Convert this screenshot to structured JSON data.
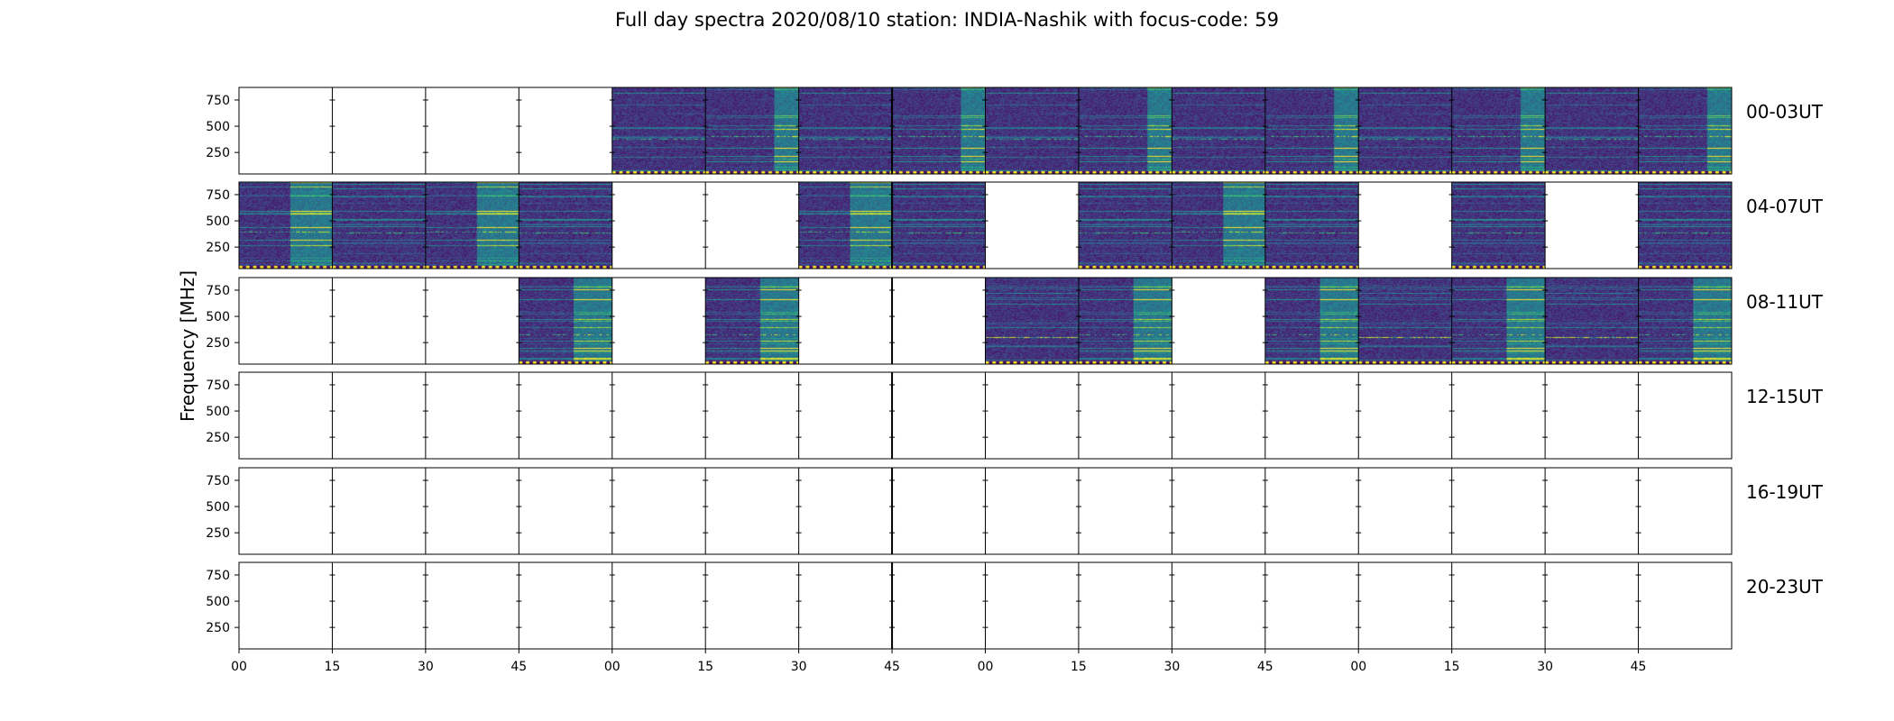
{
  "chart_data": {
    "type": "heatmap",
    "title": "Full day spectra 2020/08/10 station: INDIA-Nashik with focus-code: 59",
    "ylabel": "Frequency [MHz]",
    "xlabel": "",
    "y_ticks": [
      250,
      500,
      750
    ],
    "ylim": [
      45,
      870
    ],
    "x_tick_labels": [
      "00",
      "15",
      "30",
      "45",
      "00",
      "15",
      "30",
      "45",
      "00",
      "15",
      "30",
      "45",
      "00",
      "15",
      "30",
      "45"
    ],
    "colormap": "viridis",
    "rows": [
      {
        "label": "00-03UT",
        "has_data": [
          0,
          0,
          0,
          0,
          1,
          1,
          1,
          1,
          1,
          1,
          1,
          1,
          1,
          1,
          1,
          1
        ]
      },
      {
        "label": "04-07UT",
        "has_data": [
          1,
          1,
          1,
          1,
          0,
          0,
          1,
          1,
          0,
          1,
          1,
          1,
          0,
          1,
          0,
          1
        ]
      },
      {
        "label": "08-11UT",
        "has_data": [
          0,
          0,
          0,
          1,
          0,
          1,
          0,
          0,
          1,
          1,
          0,
          1,
          1,
          1,
          1,
          1
        ]
      },
      {
        "label": "12-15UT",
        "has_data": [
          0,
          0,
          0,
          0,
          0,
          0,
          0,
          0,
          0,
          0,
          0,
          0,
          0,
          0,
          0,
          0
        ]
      },
      {
        "label": "16-19UT",
        "has_data": [
          0,
          0,
          0,
          0,
          0,
          0,
          0,
          0,
          0,
          0,
          0,
          0,
          0,
          0,
          0,
          0
        ]
      },
      {
        "label": "20-23UT",
        "has_data": [
          0,
          0,
          0,
          0,
          0,
          0,
          0,
          0,
          0,
          0,
          0,
          0,
          0,
          0,
          0,
          0
        ]
      }
    ]
  }
}
